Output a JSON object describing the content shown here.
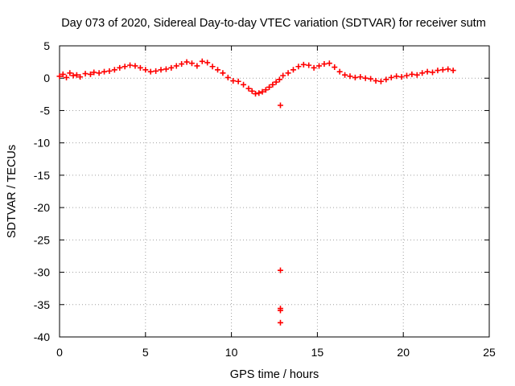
{
  "chart_data": {
    "type": "scatter",
    "title": "Day 073 of 2020, Sidereal Day-to-day VTEC variation (SDTVAR) for receiver sutm",
    "xlabel": "GPS time / hours",
    "ylabel": "SDTVAR / TECUs",
    "xlim": [
      0,
      25
    ],
    "ylim": [
      -40,
      5
    ],
    "xticks": [
      0,
      5,
      10,
      15,
      20,
      25
    ],
    "xtick_labels": [
      "0",
      "5",
      "10",
      "15",
      "20",
      "25"
    ],
    "yticks": [
      5,
      0,
      -5,
      -10,
      -15,
      -20,
      -25,
      -30,
      -35,
      -40
    ],
    "ytick_labels": [
      "5",
      "0",
      "-5",
      "-10",
      "-15",
      "-20",
      "-25",
      "-30",
      "-35",
      "-40"
    ],
    "grid": true,
    "marker": "+",
    "color": "#ff0000",
    "series": [
      {
        "name": "SDTVAR",
        "points": [
          [
            0.0,
            0.3
          ],
          [
            0.2,
            0.6
          ],
          [
            0.4,
            0.1
          ],
          [
            0.6,
            0.8
          ],
          [
            0.8,
            0.4
          ],
          [
            1.0,
            0.5
          ],
          [
            1.2,
            0.2
          ],
          [
            1.5,
            0.7
          ],
          [
            1.8,
            0.6
          ],
          [
            2.0,
            0.9
          ],
          [
            2.3,
            0.8
          ],
          [
            2.6,
            1.0
          ],
          [
            2.9,
            1.1
          ],
          [
            3.2,
            1.3
          ],
          [
            3.5,
            1.6
          ],
          [
            3.8,
            1.8
          ],
          [
            4.1,
            2.0
          ],
          [
            4.4,
            1.9
          ],
          [
            4.7,
            1.6
          ],
          [
            5.0,
            1.3
          ],
          [
            5.3,
            1.0
          ],
          [
            5.6,
            1.1
          ],
          [
            5.9,
            1.3
          ],
          [
            6.2,
            1.4
          ],
          [
            6.5,
            1.6
          ],
          [
            6.8,
            1.9
          ],
          [
            7.1,
            2.2
          ],
          [
            7.4,
            2.5
          ],
          [
            7.7,
            2.3
          ],
          [
            8.0,
            1.9
          ],
          [
            8.3,
            2.6
          ],
          [
            8.6,
            2.4
          ],
          [
            8.9,
            1.8
          ],
          [
            9.2,
            1.3
          ],
          [
            9.5,
            0.8
          ],
          [
            9.8,
            0.1
          ],
          [
            10.1,
            -0.4
          ],
          [
            10.4,
            -0.5
          ],
          [
            10.7,
            -1.0
          ],
          [
            11.0,
            -1.6
          ],
          [
            11.2,
            -2.0
          ],
          [
            11.4,
            -2.4
          ],
          [
            11.6,
            -2.3
          ],
          [
            11.8,
            -2.1
          ],
          [
            12.0,
            -1.8
          ],
          [
            12.2,
            -1.4
          ],
          [
            12.4,
            -1.0
          ],
          [
            12.6,
            -0.6
          ],
          [
            12.8,
            -0.2
          ],
          [
            12.85,
            -4.2
          ],
          [
            12.85,
            -29.7
          ],
          [
            12.85,
            -35.6
          ],
          [
            12.85,
            -35.9
          ],
          [
            12.85,
            -37.8
          ],
          [
            13.0,
            0.4
          ],
          [
            13.3,
            0.8
          ],
          [
            13.6,
            1.3
          ],
          [
            13.9,
            1.8
          ],
          [
            14.2,
            2.1
          ],
          [
            14.5,
            2.0
          ],
          [
            14.8,
            1.6
          ],
          [
            15.1,
            1.9
          ],
          [
            15.4,
            2.2
          ],
          [
            15.7,
            2.3
          ],
          [
            16.0,
            1.7
          ],
          [
            16.3,
            1.0
          ],
          [
            16.6,
            0.5
          ],
          [
            16.9,
            0.3
          ],
          [
            17.2,
            0.1
          ],
          [
            17.5,
            0.2
          ],
          [
            17.8,
            0.0
          ],
          [
            18.1,
            -0.1
          ],
          [
            18.4,
            -0.4
          ],
          [
            18.7,
            -0.5
          ],
          [
            19.0,
            -0.2
          ],
          [
            19.3,
            0.1
          ],
          [
            19.6,
            0.3
          ],
          [
            19.9,
            0.2
          ],
          [
            20.2,
            0.4
          ],
          [
            20.5,
            0.6
          ],
          [
            20.8,
            0.5
          ],
          [
            21.1,
            0.8
          ],
          [
            21.4,
            1.0
          ],
          [
            21.7,
            0.9
          ],
          [
            22.0,
            1.2
          ],
          [
            22.3,
            1.3
          ],
          [
            22.6,
            1.4
          ],
          [
            22.9,
            1.2
          ]
        ]
      }
    ]
  }
}
